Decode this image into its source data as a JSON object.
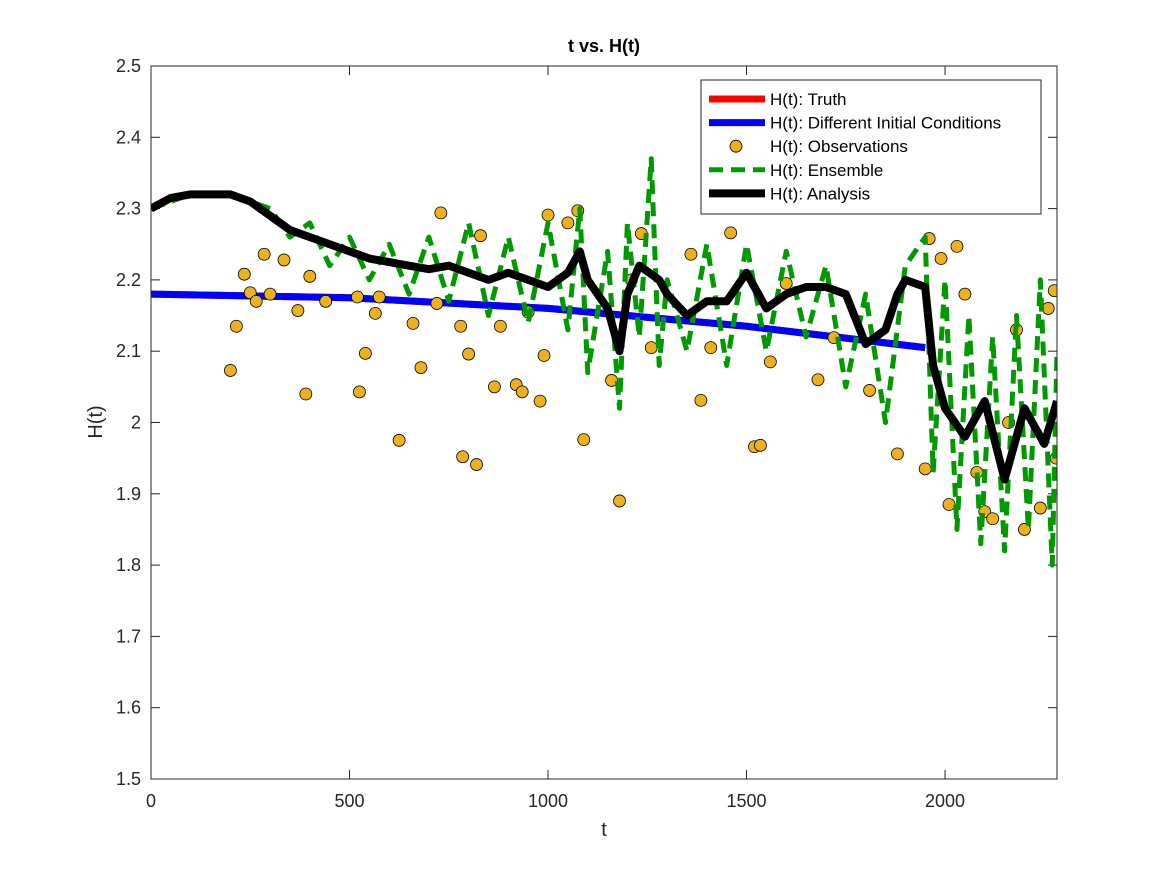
{
  "chart_data": {
    "type": "line",
    "title": "t vs. H(t)",
    "x_label": "t",
    "y_label": "H(t)",
    "xlim": [
      0,
      2282
    ],
    "ylim": [
      1.5,
      2.5
    ],
    "xticks": [
      0,
      500,
      1000,
      1500,
      2000
    ],
    "yticks": [
      1.5,
      1.6,
      1.7,
      1.8,
      1.9,
      2,
      2.1,
      2.2,
      2.3,
      2.4,
      2.5
    ],
    "legend": "upper right",
    "series": [
      {
        "name": "H(t): Truth",
        "color": "#ff0000",
        "kind": "line",
        "line_style": "solid",
        "width": 7,
        "x": [
          0,
          500,
          1000,
          1500,
          1950
        ],
        "values": [
          2.18,
          2.175,
          2.16,
          2.135,
          2.105
        ]
      },
      {
        "name": "H(t): Different Initial Conditions",
        "color": "#0000ff",
        "kind": "line",
        "line_style": "solid",
        "width": 7,
        "x": [
          0,
          500,
          1000,
          1500,
          1950
        ],
        "values": [
          2.18,
          2.175,
          2.16,
          2.135,
          2.105
        ]
      },
      {
        "name": "H(t): Observations",
        "color": "#edb120",
        "kind": "scatter",
        "marker": "o",
        "x": [
          200,
          215,
          235,
          250,
          265,
          285,
          300,
          335,
          370,
          390,
          400,
          440,
          520,
          525,
          540,
          565,
          575,
          625,
          660,
          680,
          720,
          730,
          780,
          785,
          800,
          820,
          830,
          865,
          880,
          920,
          935,
          950,
          980,
          990,
          1000,
          1050,
          1075,
          1090,
          1160,
          1180,
          1210,
          1235,
          1260,
          1360,
          1385,
          1410,
          1460,
          1520,
          1535,
          1560,
          1600,
          1680,
          1720,
          1810,
          1880,
          1950,
          1960,
          1990,
          2010,
          2030,
          2050,
          2080,
          2100,
          2120,
          2160,
          2180,
          2200,
          2240,
          2260,
          2275,
          2280
        ],
        "values": [
          2.073,
          2.135,
          2.208,
          2.182,
          2.17,
          2.236,
          2.18,
          2.228,
          2.157,
          2.04,
          2.205,
          2.17,
          2.176,
          2.043,
          2.097,
          2.153,
          2.176,
          1.975,
          2.139,
          2.077,
          2.167,
          2.294,
          2.135,
          1.952,
          2.096,
          1.941,
          2.262,
          2.05,
          2.135,
          2.053,
          2.043,
          2.155,
          2.03,
          2.094,
          2.291,
          2.28,
          2.297,
          1.976,
          2.059,
          1.89,
          2.2,
          2.265,
          2.105,
          2.236,
          2.031,
          2.105,
          2.266,
          1.966,
          1.968,
          2.085,
          2.195,
          2.06,
          2.119,
          2.045,
          1.956,
          1.935,
          2.258,
          2.23,
          1.885,
          2.247,
          2.18,
          1.93,
          1.875,
          1.865,
          2.0,
          2.13,
          1.85,
          1.88,
          2.16,
          2.185,
          1.95
        ]
      },
      {
        "name": "H(t): Ensemble",
        "color": "#009900",
        "kind": "line",
        "line_style": "dashed",
        "width": 5,
        "x": [
          0,
          100,
          200,
          300,
          350,
          400,
          450,
          500,
          550,
          600,
          650,
          700,
          750,
          800,
          850,
          900,
          950,
          1000,
          1050,
          1080,
          1100,
          1150,
          1180,
          1200,
          1230,
          1260,
          1280,
          1300,
          1350,
          1400,
          1450,
          1500,
          1550,
          1600,
          1650,
          1700,
          1750,
          1800,
          1850,
          1900,
          1950,
          1970,
          2000,
          2030,
          2060,
          2090,
          2120,
          2150,
          2180,
          2210,
          2240,
          2270,
          2282
        ],
        "values": [
          2.3,
          2.32,
          2.32,
          2.3,
          2.26,
          2.28,
          2.22,
          2.26,
          2.2,
          2.25,
          2.18,
          2.26,
          2.17,
          2.28,
          2.15,
          2.26,
          2.14,
          2.28,
          2.13,
          2.3,
          2.07,
          2.24,
          2.02,
          2.28,
          2.12,
          2.37,
          2.08,
          2.2,
          2.1,
          2.25,
          2.08,
          2.25,
          2.1,
          2.24,
          2.12,
          2.22,
          2.05,
          2.18,
          2.0,
          2.22,
          2.26,
          1.93,
          2.2,
          1.85,
          2.15,
          1.83,
          2.12,
          1.82,
          2.15,
          1.85,
          2.2,
          1.8,
          2.1
        ]
      },
      {
        "name": "H(t): Analysis",
        "color": "#000000",
        "kind": "line",
        "line_style": "solid",
        "width": 8,
        "x": [
          0,
          50,
          100,
          150,
          200,
          250,
          300,
          350,
          400,
          450,
          500,
          550,
          600,
          650,
          700,
          750,
          800,
          850,
          900,
          950,
          1000,
          1050,
          1080,
          1100,
          1150,
          1180,
          1200,
          1230,
          1280,
          1300,
          1350,
          1400,
          1450,
          1500,
          1550,
          1600,
          1650,
          1700,
          1750,
          1800,
          1850,
          1880,
          1900,
          1950,
          1970,
          2000,
          2050,
          2100,
          2150,
          2200,
          2250,
          2282
        ],
        "values": [
          2.3,
          2.315,
          2.32,
          2.32,
          2.32,
          2.31,
          2.29,
          2.27,
          2.26,
          2.25,
          2.24,
          2.23,
          2.225,
          2.22,
          2.215,
          2.22,
          2.21,
          2.2,
          2.21,
          2.2,
          2.19,
          2.21,
          2.24,
          2.2,
          2.16,
          2.1,
          2.18,
          2.22,
          2.2,
          2.18,
          2.15,
          2.17,
          2.17,
          2.21,
          2.16,
          2.18,
          2.19,
          2.19,
          2.18,
          2.11,
          2.13,
          2.18,
          2.2,
          2.19,
          2.08,
          2.02,
          1.98,
          2.03,
          1.92,
          2.02,
          1.97,
          2.03
        ]
      }
    ]
  }
}
